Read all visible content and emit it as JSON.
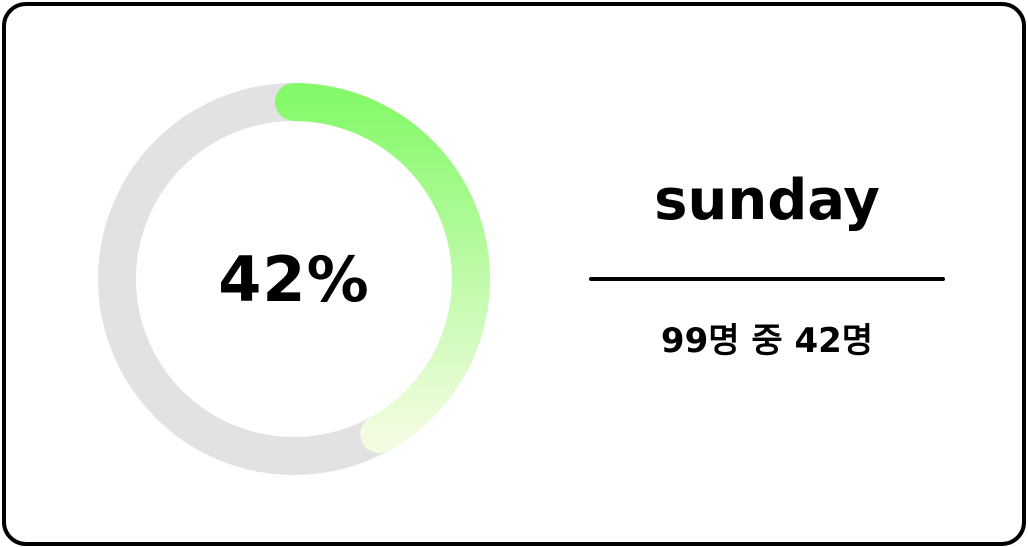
{
  "progress": {
    "percent_label": "42%",
    "fraction": 0.42,
    "track_color": "#e2e2e2",
    "gradient_start_color": "#86f96b",
    "gradient_end_color": "#f2fce0"
  },
  "day": {
    "name": "sunday",
    "count_text": "99명 중 42명"
  },
  "colors": {
    "border": "#000000",
    "background": "#ffffff",
    "text": "#000000"
  }
}
